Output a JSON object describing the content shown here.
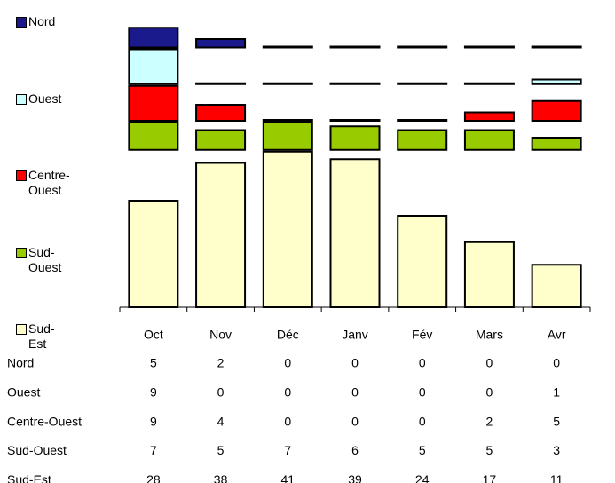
{
  "chart_data": {
    "type": "bar",
    "categories": [
      "Oct",
      "Nov",
      "Déc",
      "Janv",
      "Fév",
      "Mars",
      "Avr"
    ],
    "series": [
      {
        "name": "Nord",
        "color": "#1a1a8c",
        "values": [
          5,
          2,
          0,
          0,
          0,
          0,
          0
        ]
      },
      {
        "name": "Ouest",
        "color": "#ccffff",
        "values": [
          9,
          0,
          0,
          0,
          0,
          0,
          1
        ]
      },
      {
        "name": "Centre-Ouest",
        "color": "#ff0000",
        "values": [
          9,
          4,
          0,
          0,
          0,
          2,
          5
        ]
      },
      {
        "name": "Sud-Ouest",
        "color": "#99cc00",
        "values": [
          7,
          5,
          7,
          6,
          5,
          5,
          3
        ]
      },
      {
        "name": "Sud-Est",
        "color": "#ffffcc",
        "values": [
          28,
          38,
          41,
          39,
          24,
          17,
          11
        ]
      }
    ]
  }
}
